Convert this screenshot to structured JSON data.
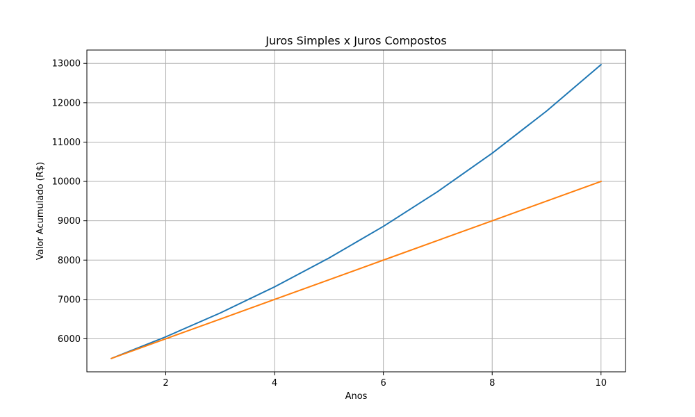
{
  "chart_data": {
    "type": "line",
    "title": "Juros Simples x Juros Compostos",
    "xlabel": "Anos",
    "ylabel": "Valor Acumulado (R$)",
    "x": [
      1,
      2,
      3,
      4,
      5,
      6,
      7,
      8,
      9,
      10
    ],
    "xlim": [
      0.55,
      10.45
    ],
    "ylim": [
      5160,
      13340
    ],
    "xticks": [
      2,
      4,
      6,
      8,
      10
    ],
    "yticks": [
      6000,
      7000,
      8000,
      9000,
      10000,
      11000,
      12000,
      13000
    ],
    "grid": true,
    "legend": "none",
    "series": [
      {
        "color": "#1f77b4",
        "values": [
          5500,
          6050,
          6655,
          7320,
          8053,
          8858,
          9744,
          10718,
          11790,
          12969
        ]
      },
      {
        "color": "#ff7f0e",
        "values": [
          5500,
          6000,
          6500,
          7000,
          7500,
          8000,
          8500,
          9000,
          9500,
          10000
        ]
      }
    ]
  }
}
